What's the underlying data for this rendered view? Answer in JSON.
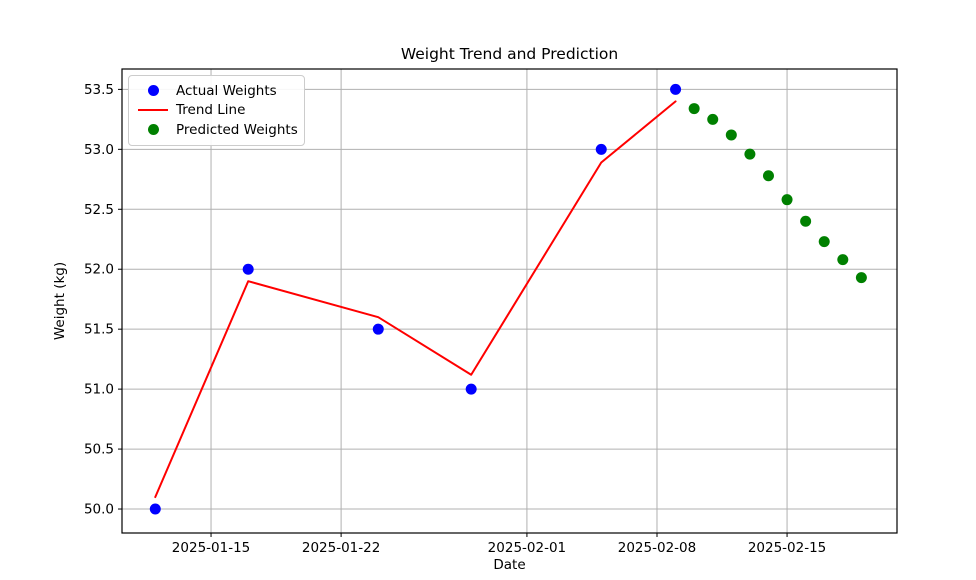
{
  "chart_data": {
    "type": "scatter+line",
    "title": "Weight Trend and Prediction",
    "xlabel": "Date",
    "ylabel": "Weight (kg)",
    "x_ticks": [
      "2025-01-15",
      "2025-01-22",
      "2025-02-01",
      "2025-02-08",
      "2025-02-15"
    ],
    "y_ticks": [
      50.0,
      50.5,
      51.0,
      51.5,
      52.0,
      52.5,
      53.0,
      53.5
    ],
    "xlim": [
      "2025-01-10T05:00:00Z",
      "2025-02-20T22:00:00Z"
    ],
    "ylim": [
      49.8,
      53.67
    ],
    "grid": true,
    "grid_color": "#b0b0b0",
    "axis_color": "#000000",
    "background_color": "#ffffff",
    "legend_position": "upper left",
    "series": [
      {
        "name": "Actual Weights",
        "type": "scatter",
        "color": "#0000ff",
        "marker": "circle",
        "points": [
          [
            "2025-01-12",
            50.0
          ],
          [
            "2025-01-17",
            52.0
          ],
          [
            "2025-01-24",
            51.5
          ],
          [
            "2025-01-29",
            51.0
          ],
          [
            "2025-02-05",
            53.0
          ],
          [
            "2025-02-09",
            53.5
          ]
        ]
      },
      {
        "name": "Trend Line",
        "type": "line",
        "color": "#ff0000",
        "points": [
          [
            "2025-01-12",
            50.1
          ],
          [
            "2025-01-17",
            51.9
          ],
          [
            "2025-01-24",
            51.6
          ],
          [
            "2025-01-29",
            51.12
          ],
          [
            "2025-02-05",
            52.89
          ],
          [
            "2025-02-09",
            53.4
          ]
        ]
      },
      {
        "name": "Predicted Weights",
        "type": "scatter",
        "color": "#008000",
        "marker": "circle",
        "points": [
          [
            "2025-02-10",
            53.34
          ],
          [
            "2025-02-11",
            53.25
          ],
          [
            "2025-02-12",
            53.12
          ],
          [
            "2025-02-13",
            52.96
          ],
          [
            "2025-02-14",
            52.78
          ],
          [
            "2025-02-15",
            52.58
          ],
          [
            "2025-02-16",
            52.4
          ],
          [
            "2025-02-17",
            52.23
          ],
          [
            "2025-02-18",
            52.08
          ],
          [
            "2025-02-19",
            51.93
          ]
        ]
      }
    ]
  }
}
